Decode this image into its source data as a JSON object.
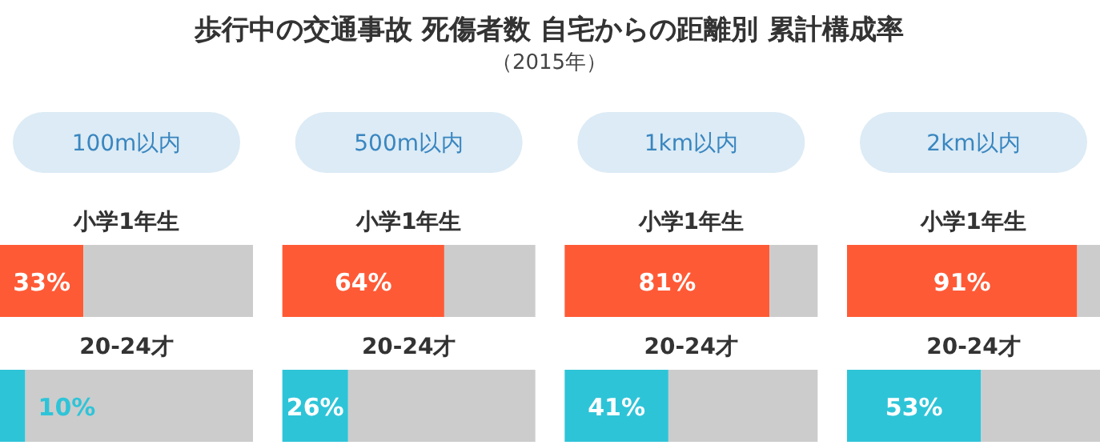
{
  "chart_data": [
    {
      "type": "other",
      "title": "歩行中の交通事故 死傷者数 自宅からの距離別 累計構成率",
      "subtitle": "（2015年）"
    },
    {
      "type": "bar",
      "orientation": "horizontal",
      "stacked": true,
      "title": "100m以内",
      "categories": [
        "小学1年生",
        "20-24才"
      ],
      "series": [
        {
          "colors": [
            "#ff5a36",
            "#2ec4d8"
          ],
          "values": [
            33,
            10
          ],
          "value_labels": [
            "33%",
            "10%"
          ]
        },
        {
          "color": "#cccccc",
          "values": [
            67,
            90
          ]
        }
      ]
    },
    {
      "type": "bar",
      "orientation": "horizontal",
      "stacked": true,
      "title": "500m以内",
      "categories": [
        "小学1年生",
        "20-24才"
      ],
      "series": [
        {
          "colors": [
            "#ff5a36",
            "#2ec4d8"
          ],
          "values": [
            64,
            26
          ],
          "value_labels": [
            "64%",
            "26%"
          ]
        },
        {
          "color": "#cccccc",
          "values": [
            36,
            74
          ]
        }
      ]
    },
    {
      "type": "bar",
      "orientation": "horizontal",
      "stacked": true,
      "title": "1km以内",
      "categories": [
        "小学1年生",
        "20-24才"
      ],
      "series": [
        {
          "colors": [
            "#ff5a36",
            "#2ec4d8"
          ],
          "values": [
            81,
            41
          ],
          "value_labels": [
            "81%",
            "41%"
          ]
        },
        {
          "color": "#cccccc",
          "values": [
            19,
            59
          ]
        }
      ]
    },
    {
      "type": "bar",
      "orientation": "horizontal",
      "stacked": true,
      "title": "2km以内",
      "categories": [
        "小学1年生",
        "20-24才"
      ],
      "series": [
        {
          "colors": [
            "#ff5a36",
            "#2ec4d8"
          ],
          "values": [
            91,
            53
          ],
          "value_labels": [
            "91%",
            "53%"
          ]
        },
        {
          "color": "#cccccc",
          "values": [
            9,
            47
          ]
        }
      ]
    }
  ]
}
